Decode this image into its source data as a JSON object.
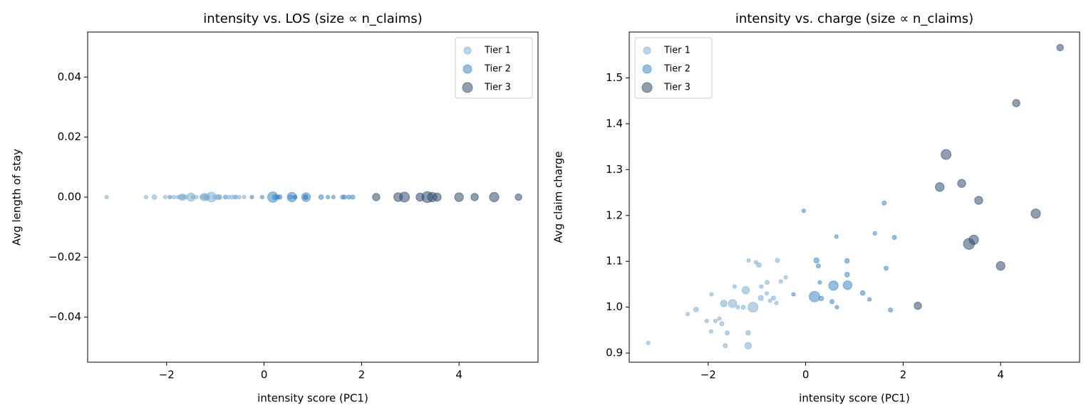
{
  "chart_data": [
    {
      "type": "scatter",
      "title": "intensity vs. LOS (size ∝ n_claims)",
      "x_label": "intensity score (PC1)",
      "y_label": "Avg length of stay",
      "xlim": [
        -3.62,
        5.62
      ],
      "ylim": [
        -0.055,
        0.055
      ],
      "xticks": [
        {
          "value": -2,
          "label": "−2"
        },
        0,
        2,
        4
      ],
      "yticks": [
        {
          "value": -0.04,
          "label": "−0.04"
        },
        {
          "value": -0.02,
          "label": "−0.02"
        },
        {
          "value": 0,
          "label": "0.00"
        },
        {
          "value": 0.02,
          "label": "0.02"
        },
        {
          "value": 0.04,
          "label": "0.04"
        }
      ],
      "legend": "upper right",
      "grid": false,
      "series": [
        {
          "name": "Tier 1",
          "color": "#7bafd4",
          "x": [
            -3.23,
            -2.42,
            -2.25,
            -2.03,
            -1.94,
            -1.93,
            -1.85,
            -1.77,
            -1.72,
            -1.65,
            -1.68,
            -1.61,
            -1.5,
            -1.46,
            -1.39,
            -1.28,
            -1.23,
            -1.18,
            -1.18,
            -1.17,
            -1.08,
            -1.02,
            -0.96,
            -0.92,
            -0.91,
            -0.79,
            -0.8,
            -0.73,
            -0.66,
            -0.6,
            -0.58,
            -0.51,
            -0.41
          ],
          "values": [
            0,
            0,
            0,
            0,
            0,
            0,
            0,
            0,
            0,
            0,
            0,
            0,
            0,
            0,
            0,
            0,
            0,
            0,
            0,
            0,
            0,
            0,
            0,
            0,
            0,
            0,
            0,
            0,
            0,
            0,
            0,
            0,
            0
          ],
          "sizes": [
            6,
            6,
            10,
            6,
            6,
            6,
            6,
            6,
            8,
            8,
            20,
            8,
            30,
            6,
            6,
            8,
            25,
            20,
            10,
            6,
            45,
            6,
            10,
            12,
            6,
            8,
            6,
            6,
            8,
            6,
            8,
            6,
            6
          ]
        },
        {
          "name": "Tier 2",
          "color": "#3d8ac7",
          "x": [
            -0.04,
            -0.25,
            0.18,
            0.22,
            0.26,
            0.29,
            0.32,
            0.57,
            0.54,
            0.63,
            0.64,
            0.85,
            0.85,
            0.86,
            1.17,
            1.31,
            1.42,
            1.61,
            1.65,
            1.74,
            1.82
          ],
          "values": [
            0,
            0,
            0,
            0,
            0,
            0,
            0,
            0,
            0,
            0,
            0,
            0,
            0,
            0,
            0,
            0,
            0,
            0,
            0,
            0,
            0
          ],
          "sizes": [
            6,
            6,
            50,
            12,
            8,
            6,
            10,
            40,
            8,
            6,
            6,
            10,
            10,
            35,
            10,
            6,
            6,
            8,
            8,
            8,
            8
          ]
        },
        {
          "name": "Tier 3",
          "color": "#2f4f6f",
          "x": [
            2.3,
            2.75,
            2.88,
            3.2,
            3.35,
            3.45,
            3.55,
            4.0,
            4.32,
            4.72,
            5.22
          ],
          "values": [
            0,
            0,
            0,
            0,
            0,
            0,
            0,
            0,
            0,
            0,
            0
          ],
          "sizes": [
            25,
            35,
            45,
            30,
            55,
            40,
            30,
            35,
            25,
            40,
            20
          ]
        }
      ]
    },
    {
      "type": "scatter",
      "title": "intensity vs. charge (size ∝ n_claims)",
      "x_label": "intensity score (PC1)",
      "y_label": "Avg claim charge",
      "xlim": [
        -3.62,
        5.62
      ],
      "ylim": [
        0.88,
        1.6
      ],
      "xticks": [
        {
          "value": -2,
          "label": "−2"
        },
        0,
        2,
        4
      ],
      "yticks": [
        0.9,
        {
          "value": 1,
          "label": "1.0"
        },
        1.1,
        1.2,
        1.3,
        1.4,
        1.5
      ],
      "legend": "upper left",
      "grid": false,
      "series": [
        {
          "name": "Tier 1",
          "color": "#7bafd4",
          "x": [
            -3.23,
            -2.42,
            -2.25,
            -2.03,
            -1.94,
            -1.93,
            -1.85,
            -1.77,
            -1.72,
            -1.65,
            -1.68,
            -1.61,
            -1.5,
            -1.46,
            -1.39,
            -1.28,
            -1.23,
            -1.18,
            -1.18,
            -1.17,
            -1.08,
            -1.02,
            -0.96,
            -0.92,
            -0.91,
            -0.79,
            -0.8,
            -0.73,
            -0.66,
            -0.6,
            -0.58,
            -0.51,
            -0.41
          ],
          "values": [
            0.922,
            0.985,
            0.995,
            0.97,
            0.947,
            1.028,
            0.97,
            0.975,
            0.964,
            0.916,
            1.008,
            0.944,
            1.008,
            1.045,
            1.0,
            1.0,
            1.037,
            0.916,
            0.944,
            1.102,
            1.0,
            1.098,
            1.092,
            1.02,
            1.045,
            1.054,
            1.03,
            1.014,
            1.02,
            1.009,
            1.102,
            1.056,
            1.065
          ],
          "sizes": [
            6,
            6,
            10,
            6,
            6,
            6,
            6,
            6,
            8,
            8,
            20,
            8,
            30,
            6,
            6,
            8,
            25,
            20,
            10,
            6,
            45,
            6,
            10,
            12,
            6,
            8,
            6,
            6,
            8,
            6,
            8,
            6,
            6
          ]
        },
        {
          "name": "Tier 2",
          "color": "#3d8ac7",
          "x": [
            -0.04,
            -0.25,
            0.18,
            0.22,
            0.26,
            0.29,
            0.32,
            0.57,
            0.54,
            0.63,
            0.64,
            0.85,
            0.85,
            0.86,
            1.17,
            1.31,
            1.42,
            1.61,
            1.65,
            1.74,
            1.82
          ],
          "values": [
            1.21,
            1.028,
            1.023,
            1.102,
            1.09,
            1.054,
            1.019,
            1.047,
            1.012,
            1.154,
            1.0,
            1.071,
            1.101,
            1.048,
            1.031,
            1.017,
            1.161,
            1.227,
            1.085,
            0.994,
            1.152
          ],
          "sizes": [
            6,
            6,
            50,
            12,
            8,
            6,
            10,
            40,
            8,
            6,
            6,
            10,
            10,
            35,
            10,
            6,
            6,
            8,
            8,
            8,
            8
          ]
        },
        {
          "name": "Tier 3",
          "color": "#2f4f6f",
          "x": [
            2.3,
            2.75,
            2.88,
            3.2,
            3.35,
            3.45,
            3.55,
            4.0,
            4.32,
            4.72,
            5.22
          ],
          "values": [
            1.003,
            1.262,
            1.333,
            1.27,
            1.138,
            1.147,
            1.233,
            1.09,
            1.445,
            1.204,
            1.566
          ],
          "sizes": [
            25,
            35,
            45,
            30,
            55,
            40,
            30,
            35,
            25,
            40,
            20
          ]
        }
      ]
    }
  ]
}
